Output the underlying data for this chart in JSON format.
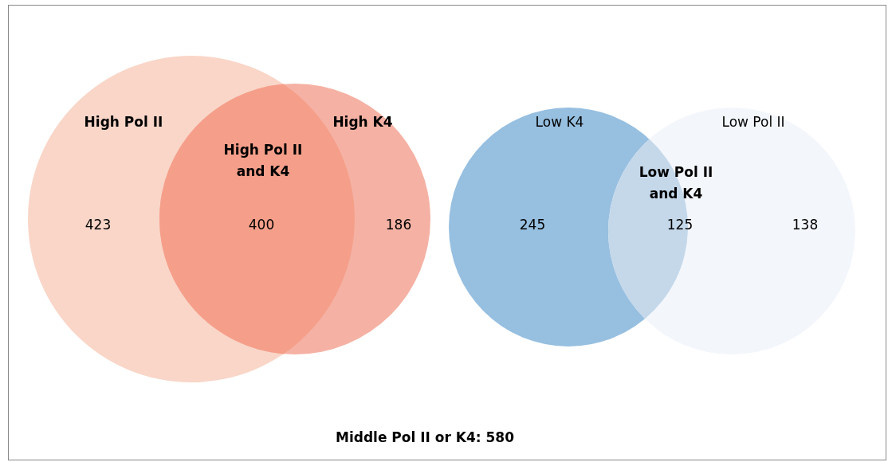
{
  "chart_data": {
    "type": "other",
    "categories": [
      "High Pol II",
      "High Pol II and K4",
      "High K4",
      "Low K4",
      "Low Pol II and K4",
      "Low Pol II"
    ],
    "values": [
      423,
      400,
      186,
      245,
      125,
      138
    ],
    "colors": [
      "#f9d6c8",
      "#f59f8a",
      "#f5b2a4",
      "#97bfe0",
      "#c4d8ea",
      "#f3f6fb"
    ],
    "data_labels": true,
    "annotations": [
      "Middle Pol II or K4: 580"
    ]
  }
}
